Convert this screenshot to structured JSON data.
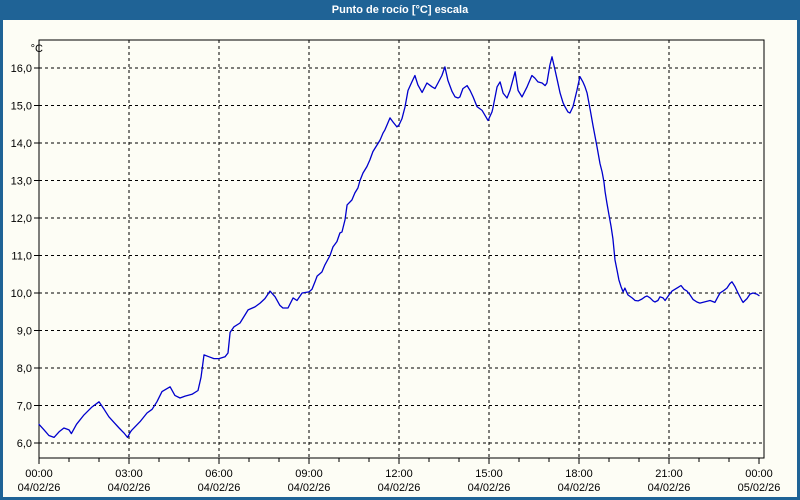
{
  "window": {
    "title": "Punto de rocío [°C] escala"
  },
  "colors": {
    "titlebar": "#1F6396",
    "frame": "#1F6396",
    "background": "#FDFDF5",
    "plot_border": "#000000",
    "line": "#0000CD"
  },
  "chart_data": {
    "type": "line",
    "title": "Punto de rocío [°C] escala",
    "unit_label": "°C",
    "grid": "dashed",
    "legend": "none",
    "ylim": [
      5.6,
      16.75
    ],
    "xlim_hours": [
      0,
      24.17
    ],
    "y_ticks": [
      6,
      7,
      8,
      9,
      10,
      11,
      12,
      13,
      14,
      15,
      16
    ],
    "y_tick_labels": [
      "6,0",
      "7,0",
      "8,0",
      "9,0",
      "10,0",
      "11,0",
      "12,0",
      "13,0",
      "14,0",
      "15,0",
      "16,0"
    ],
    "x_ticks_hours": [
      0,
      3,
      6,
      9,
      12,
      15,
      18,
      21,
      24
    ],
    "x_tick_time_labels": [
      "00:00",
      "03:00",
      "06:00",
      "09:00",
      "12:00",
      "15:00",
      "18:00",
      "21:00",
      "00:00"
    ],
    "x_tick_date_labels": [
      "04/02/26",
      "04/02/26",
      "04/02/26",
      "04/02/26",
      "04/02/26",
      "04/02/26",
      "04/02/26",
      "04/02/26",
      "05/02/26"
    ],
    "series": [
      {
        "name": "Punto de rocío",
        "color": "#0000CD",
        "x_hours": [
          0.0,
          0.17,
          0.33,
          0.5,
          0.67,
          0.83,
          1.0,
          1.08,
          1.25,
          1.5,
          1.75,
          2.0,
          2.17,
          2.33,
          2.5,
          2.67,
          2.83,
          2.95,
          3.05,
          3.1,
          3.37,
          3.6,
          3.77,
          3.93,
          4.1,
          4.27,
          4.37,
          4.53,
          4.7,
          4.87,
          5.1,
          5.3,
          5.4,
          5.5,
          5.67,
          5.83,
          6.0,
          6.2,
          6.3,
          6.37,
          6.5,
          6.7,
          6.97,
          7.2,
          7.37,
          7.53,
          7.7,
          7.87,
          8.03,
          8.13,
          8.3,
          8.47,
          8.6,
          8.77,
          9.0,
          9.1,
          9.2,
          9.27,
          9.43,
          9.53,
          9.7,
          9.8,
          9.93,
          10.03,
          10.1,
          10.2,
          10.27,
          10.43,
          10.53,
          10.63,
          10.7,
          10.8,
          10.93,
          11.03,
          11.13,
          11.27,
          11.37,
          11.47,
          11.53,
          11.6,
          11.7,
          11.8,
          11.93,
          12.0,
          12.1,
          12.2,
          12.3,
          12.43,
          12.53,
          12.63,
          12.77,
          12.93,
          13.1,
          13.2,
          13.3,
          13.43,
          13.53,
          13.63,
          13.77,
          13.87,
          13.97,
          14.03,
          14.13,
          14.27,
          14.37,
          14.47,
          14.6,
          14.77,
          14.93,
          14.97,
          15.1,
          15.13,
          15.27,
          15.37,
          15.47,
          15.6,
          15.7,
          15.87,
          15.97,
          16.1,
          16.27,
          16.43,
          16.53,
          16.63,
          16.77,
          16.87,
          16.93,
          17.03,
          17.1,
          17.2,
          17.27,
          17.37,
          17.47,
          17.53,
          17.63,
          17.7,
          17.8,
          17.93,
          18.03,
          18.13,
          18.2,
          18.27,
          18.37,
          18.47,
          18.6,
          18.7,
          18.77,
          18.83,
          18.87,
          18.93,
          19.0,
          19.07,
          19.13,
          19.2,
          19.27,
          19.33,
          19.4,
          19.47,
          19.53,
          19.63,
          19.77,
          19.87,
          19.97,
          20.1,
          20.2,
          20.27,
          20.37,
          20.47,
          20.53,
          20.63,
          20.7,
          20.8,
          20.87,
          21.0,
          21.1,
          21.3,
          21.4,
          21.5,
          21.6,
          21.7,
          21.8,
          21.93,
          22.03,
          22.27,
          22.37,
          22.53,
          22.63,
          22.7,
          22.8,
          22.93,
          23.03,
          23.1,
          23.2,
          23.3,
          23.43,
          23.47,
          23.6,
          23.7,
          23.8,
          23.93,
          24.0
        ],
        "values": [
          6.5,
          6.35,
          6.2,
          6.15,
          6.3,
          6.4,
          6.35,
          6.25,
          6.5,
          6.75,
          6.95,
          7.1,
          6.9,
          6.7,
          6.55,
          6.4,
          6.27,
          6.15,
          6.3,
          6.35,
          6.57,
          6.8,
          6.9,
          7.1,
          7.37,
          7.45,
          7.5,
          7.27,
          7.2,
          7.25,
          7.3,
          7.4,
          7.75,
          8.35,
          8.3,
          8.25,
          8.25,
          8.3,
          8.4,
          8.95,
          9.1,
          9.2,
          9.55,
          9.63,
          9.73,
          9.85,
          10.05,
          9.9,
          9.67,
          9.6,
          9.6,
          9.87,
          9.8,
          10.0,
          10.03,
          10.1,
          10.3,
          10.45,
          10.56,
          10.75,
          11.0,
          11.23,
          11.37,
          11.6,
          11.63,
          11.95,
          12.35,
          12.48,
          12.67,
          12.8,
          13.0,
          13.2,
          13.37,
          13.55,
          13.77,
          13.95,
          14.08,
          14.27,
          14.35,
          14.48,
          14.67,
          14.56,
          14.43,
          14.48,
          14.65,
          14.96,
          15.4,
          15.63,
          15.8,
          15.55,
          15.35,
          15.6,
          15.5,
          15.45,
          15.6,
          15.8,
          16.03,
          15.67,
          15.37,
          15.23,
          15.2,
          15.23,
          15.45,
          15.53,
          15.4,
          15.23,
          14.97,
          14.87,
          14.65,
          14.6,
          14.83,
          14.93,
          15.5,
          15.63,
          15.33,
          15.2,
          15.4,
          15.9,
          15.4,
          15.23,
          15.5,
          15.8,
          15.73,
          15.63,
          15.6,
          15.53,
          15.6,
          16.08,
          16.3,
          15.95,
          15.7,
          15.33,
          15.07,
          14.97,
          14.83,
          14.8,
          14.97,
          15.4,
          15.77,
          15.63,
          15.5,
          15.33,
          14.9,
          14.45,
          13.9,
          13.45,
          13.23,
          12.97,
          12.7,
          12.4,
          12.08,
          11.77,
          11.45,
          10.88,
          10.6,
          10.35,
          10.17,
          10.03,
          10.13,
          9.95,
          9.87,
          9.8,
          9.79,
          9.84,
          9.9,
          9.92,
          9.87,
          9.79,
          9.76,
          9.8,
          9.9,
          9.87,
          9.8,
          9.95,
          10.05,
          10.15,
          10.2,
          10.1,
          10.05,
          9.95,
          9.83,
          9.76,
          9.73,
          9.78,
          9.8,
          9.75,
          9.9,
          10.0,
          10.05,
          10.13,
          10.25,
          10.3,
          10.17,
          10.0,
          9.8,
          9.75,
          9.85,
          9.97,
          10.0,
          9.97,
          9.93
        ]
      }
    ]
  }
}
